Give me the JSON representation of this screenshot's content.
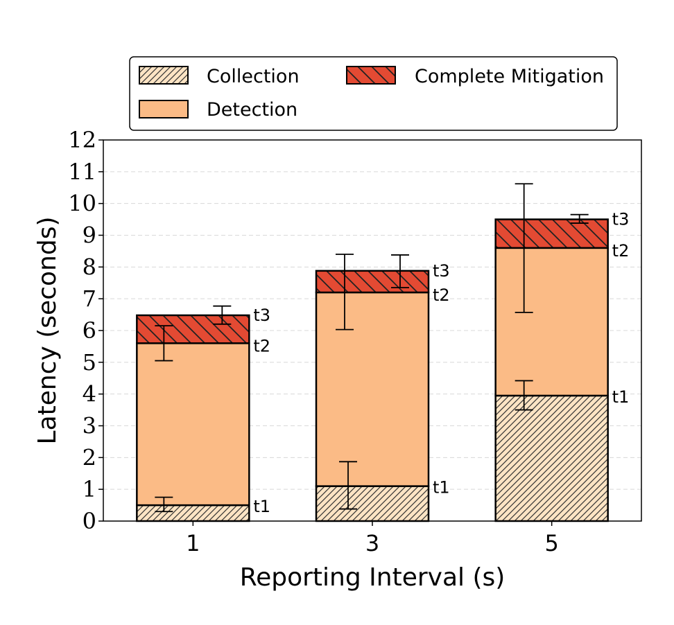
{
  "chart_data": {
    "type": "bar",
    "stacked": true,
    "title": "",
    "xlabel": "Reporting Interval (s)",
    "ylabel": "Latency (seconds)",
    "categories": [
      "1",
      "3",
      "5"
    ],
    "ylim": [
      0,
      12
    ],
    "yticks": [
      0,
      1,
      2,
      3,
      4,
      5,
      6,
      7,
      8,
      9,
      10,
      11,
      12
    ],
    "grid": "y-dashed",
    "legend_position": "top",
    "series": [
      {
        "name": "Collection",
        "color": "#fde4c4",
        "hatch": "forward-diagonal",
        "values": [
          0.5,
          1.1,
          3.95
        ],
        "error_low": [
          0.3,
          0.38,
          3.5
        ],
        "error_high": [
          0.75,
          1.87,
          4.42
        ]
      },
      {
        "name": "Detection",
        "color": "#fbbb86",
        "hatch": "none",
        "values": [
          5.1,
          6.1,
          4.65
        ],
        "error_low": [
          5.05,
          6.03,
          6.57
        ],
        "error_high": [
          6.15,
          8.4,
          10.62
        ]
      },
      {
        "name": "Complete Mitigation",
        "color": "#e34a33",
        "hatch": "back-diagonal",
        "values": [
          0.88,
          0.68,
          0.9
        ],
        "error_low": [
          6.2,
          7.35,
          9.38
        ],
        "error_high": [
          6.77,
          8.38,
          9.65
        ]
      }
    ],
    "annotations": [
      {
        "category": "1",
        "labels": [
          {
            "text": "t1",
            "y": 0.5
          },
          {
            "text": "t2",
            "y": 5.6
          },
          {
            "text": "t3",
            "y": 6.48
          }
        ]
      },
      {
        "category": "3",
        "labels": [
          {
            "text": "t1",
            "y": 1.1
          },
          {
            "text": "t2",
            "y": 7.2
          },
          {
            "text": "t3",
            "y": 7.88
          }
        ]
      },
      {
        "category": "5",
        "labels": [
          {
            "text": "t1",
            "y": 3.95
          },
          {
            "text": "t2",
            "y": 8.6
          },
          {
            "text": "t3",
            "y": 9.5
          }
        ]
      }
    ]
  }
}
